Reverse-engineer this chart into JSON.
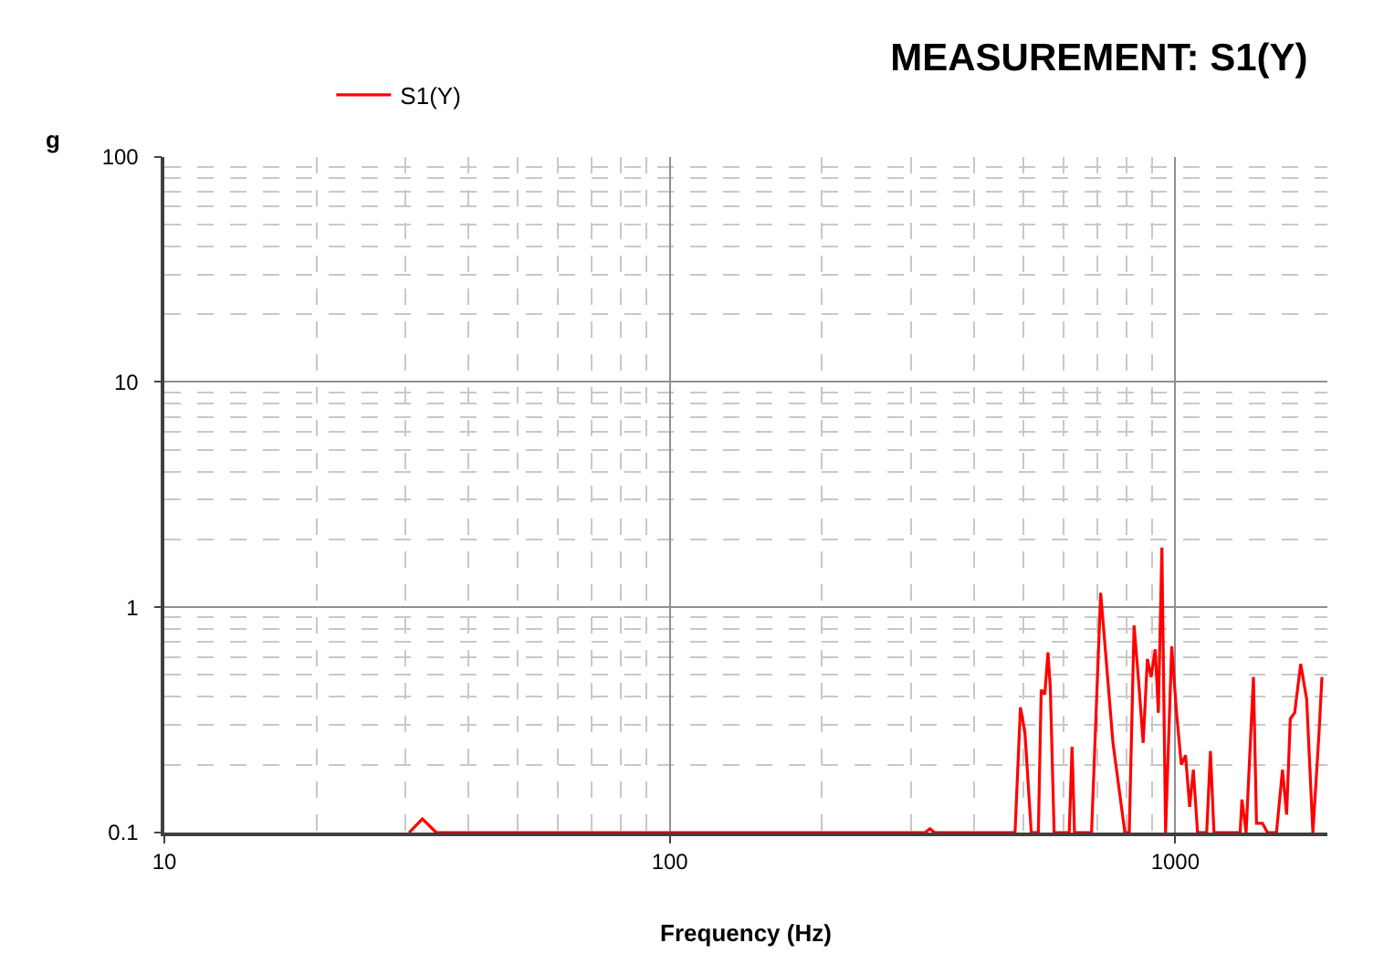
{
  "chart_data": {
    "type": "line",
    "title": "MEASUREMENT: S1(Y)",
    "xlabel": "Frequency (Hz)",
    "ylabel": "g",
    "log": "xy",
    "grid": true,
    "legend": "top left",
    "line_style": "solid",
    "xlim": [
      10,
      2000
    ],
    "xticks": [
      10,
      100,
      1000
    ],
    "ylim": [
      0.1,
      100
    ],
    "yticks": [
      0.1,
      1,
      10,
      100
    ],
    "series": [
      {
        "name": "S1(Y)",
        "color": "#ff0000",
        "x": [
          30.5,
          32.4,
          34.5,
          320,
          327,
          334,
          482,
          494,
          504,
          507,
          519,
          536,
          543,
          552,
          560,
          566,
          576,
          617,
          625,
          632,
          683,
          712,
          753,
          795,
          811,
          829,
          847,
          864,
          881,
          896,
          913,
          926,
          941,
          957,
          984,
          1006,
          1028,
          1048,
          1068,
          1086,
          1107,
          1154,
          1174,
          1193,
          1344,
          1355,
          1381,
          1428,
          1448,
          1488,
          1522,
          1586,
          1630,
          1661,
          1689,
          1723,
          1771,
          1820,
          1872,
          1924,
          1951
        ],
        "values": [
          0.1,
          0.115,
          0.1,
          0.1,
          0.104,
          0.1,
          0.1,
          0.36,
          0.28,
          0.23,
          0.1,
          0.1,
          0.43,
          0.41,
          0.63,
          0.44,
          0.1,
          0.1,
          0.24,
          0.1,
          0.1,
          1.16,
          0.25,
          0.1,
          0.1,
          0.83,
          0.46,
          0.25,
          0.59,
          0.49,
          0.65,
          0.34,
          1.84,
          0.1,
          0.67,
          0.34,
          0.2,
          0.22,
          0.13,
          0.19,
          0.1,
          0.1,
          0.23,
          0.1,
          0.1,
          0.14,
          0.1,
          0.49,
          0.11,
          0.11,
          0.1,
          0.1,
          0.19,
          0.12,
          0.32,
          0.34,
          0.56,
          0.39,
          0.1,
          0.27,
          0.49
        ]
      }
    ]
  }
}
